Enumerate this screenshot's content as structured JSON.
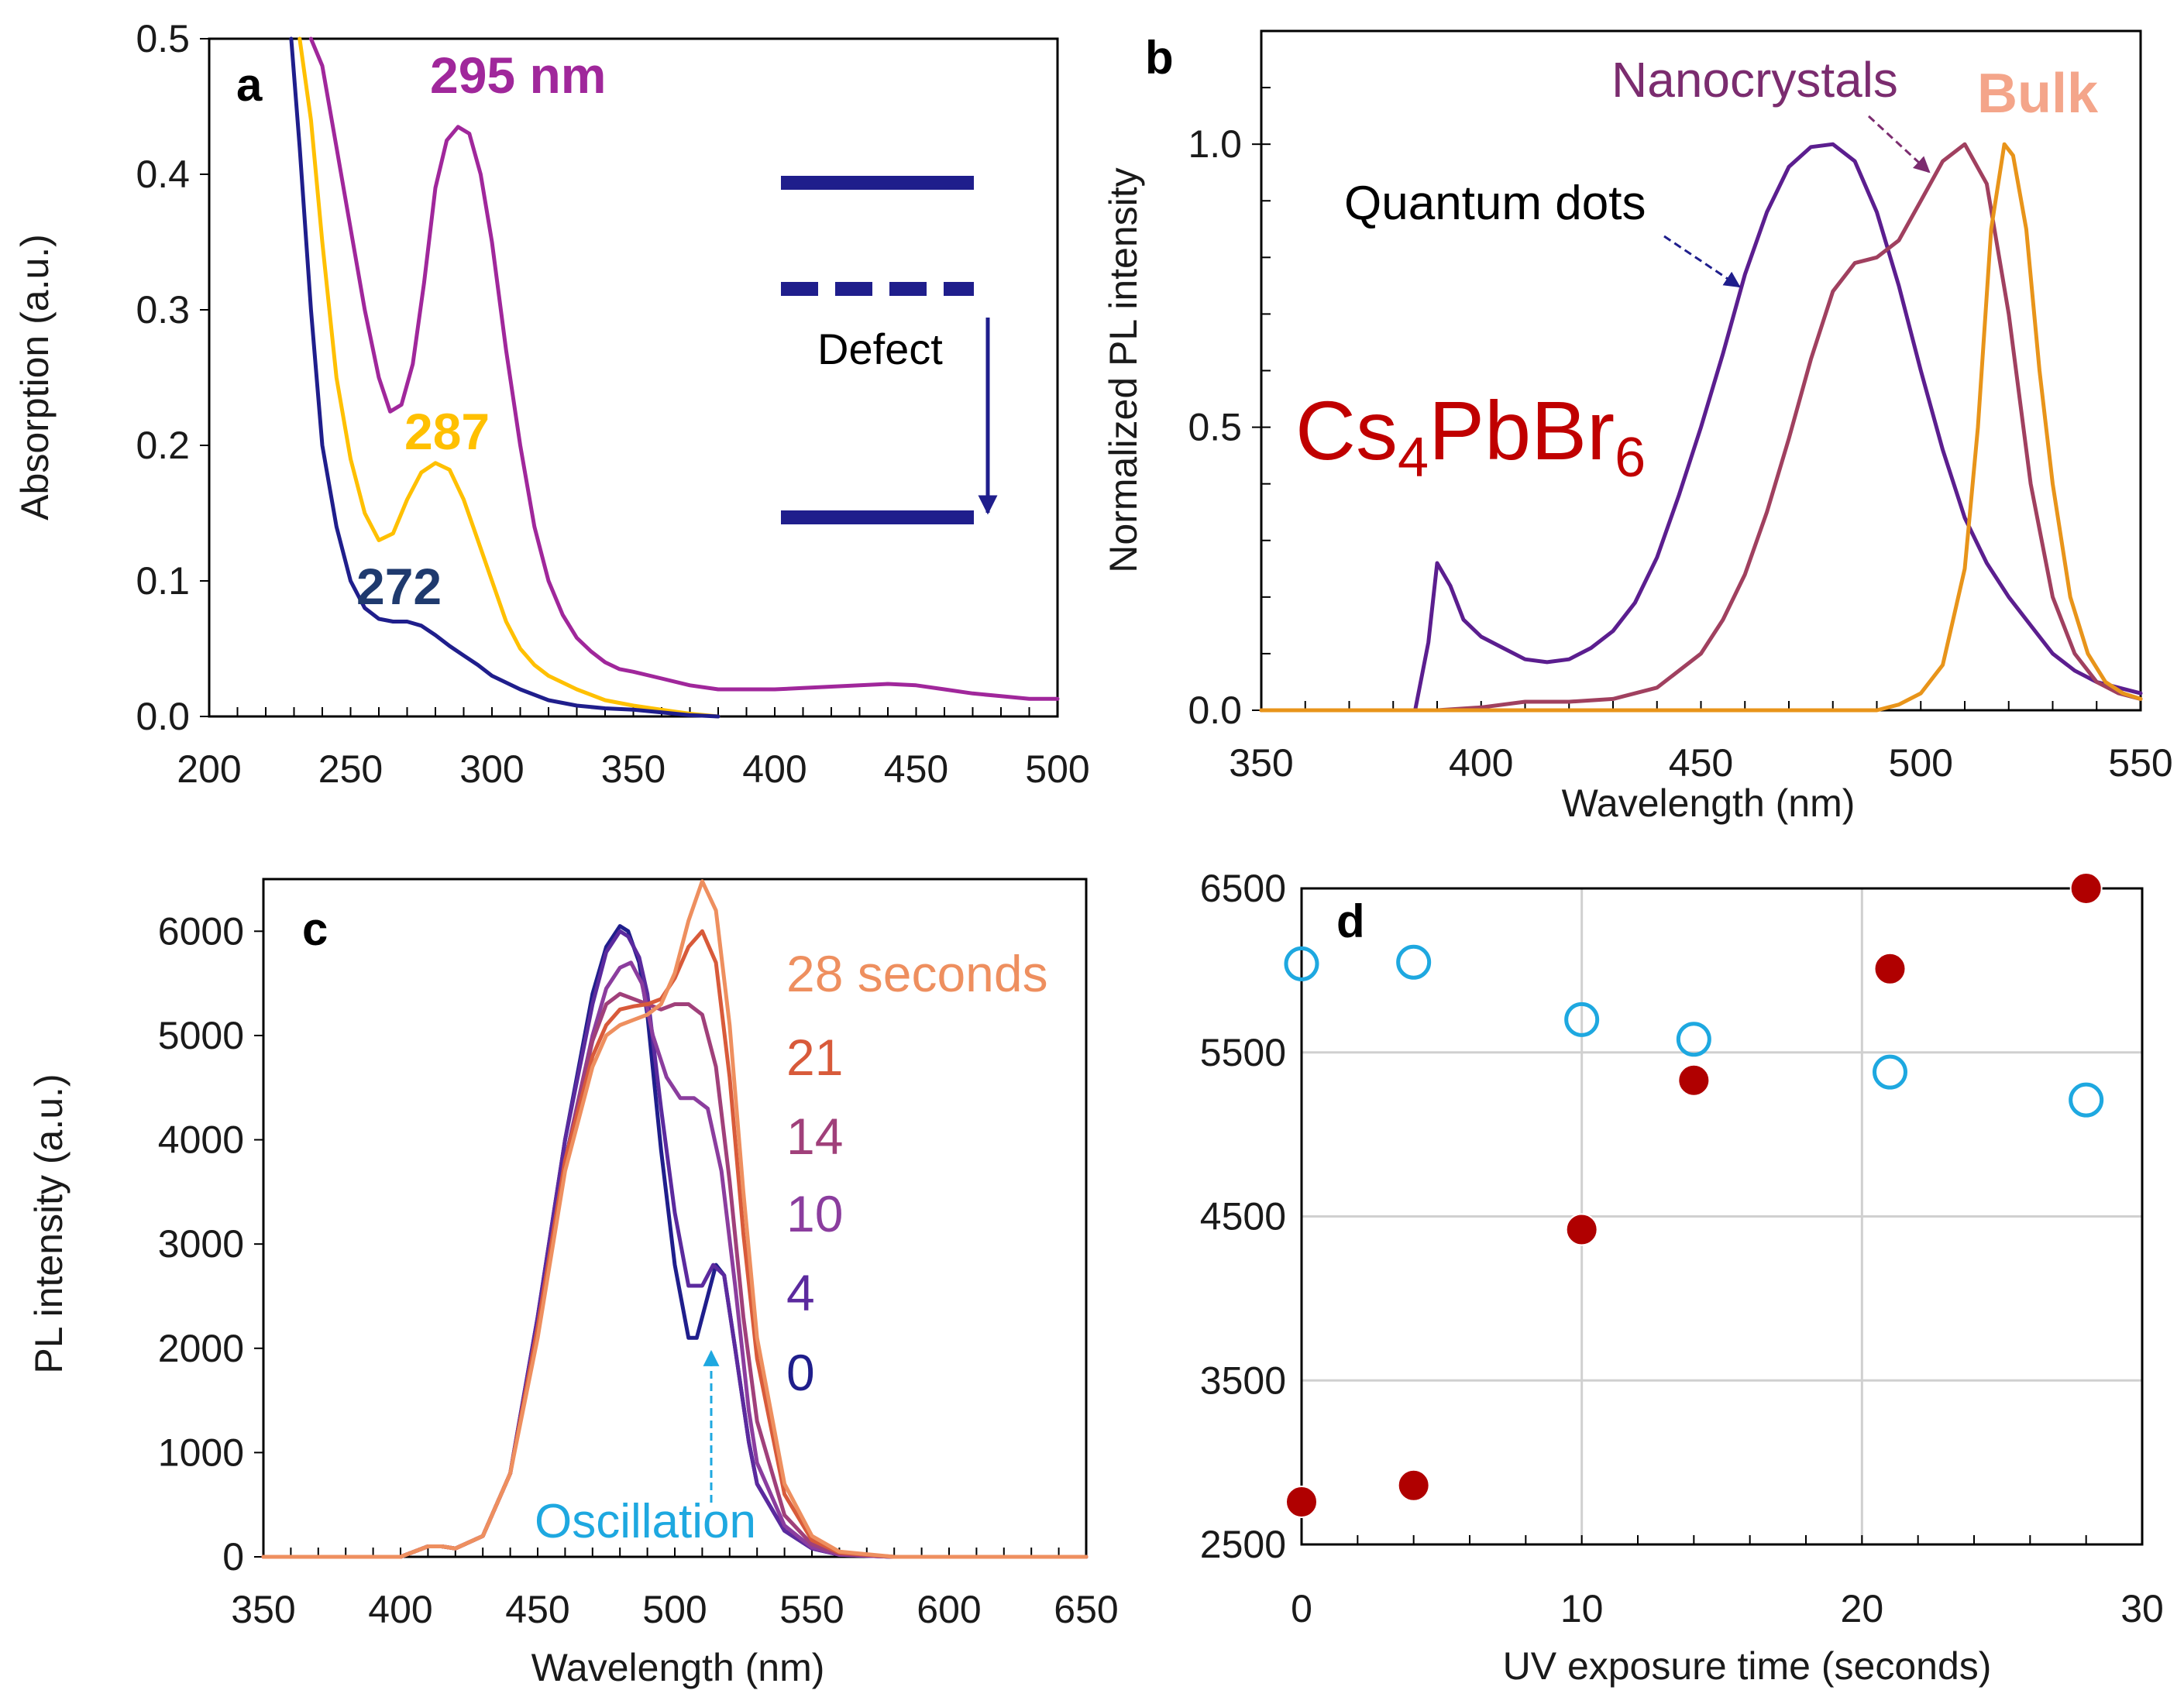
{
  "chart_data": [
    {
      "panel": "a",
      "type": "line",
      "title": "",
      "xlabel": "",
      "ylabel": "Absorption  (a.u.)",
      "xlim": [
        200,
        500
      ],
      "ylim": [
        0,
        0.5
      ],
      "xticks": [
        200,
        250,
        300,
        350,
        400,
        450,
        500
      ],
      "yticks": [
        0.0,
        0.1,
        0.2,
        0.3,
        0.4,
        0.5
      ],
      "series": [
        {
          "name": "295 nm",
          "color": "#A0279B",
          "x": [
            236,
            240,
            245,
            250,
            255,
            260,
            264,
            268,
            272,
            276,
            280,
            284,
            288,
            292,
            296,
            300,
            305,
            310,
            315,
            320,
            325,
            330,
            335,
            340,
            345,
            350,
            360,
            370,
            380,
            390,
            400,
            410,
            420,
            430,
            440,
            450,
            460,
            470,
            480,
            490,
            500
          ],
          "y": [
            0.5,
            0.48,
            0.42,
            0.36,
            0.3,
            0.25,
            0.225,
            0.23,
            0.26,
            0.32,
            0.39,
            0.425,
            0.435,
            0.43,
            0.4,
            0.35,
            0.27,
            0.2,
            0.14,
            0.1,
            0.075,
            0.058,
            0.048,
            0.04,
            0.035,
            0.033,
            0.028,
            0.023,
            0.02,
            0.02,
            0.02,
            0.021,
            0.022,
            0.023,
            0.024,
            0.023,
            0.02,
            0.017,
            0.015,
            0.013,
            0.013
          ]
        },
        {
          "name": "287",
          "color": "#FFC000",
          "x": [
            232,
            236,
            240,
            245,
            250,
            255,
            260,
            265,
            270,
            275,
            280,
            285,
            290,
            295,
            300,
            305,
            310,
            315,
            320,
            330,
            340,
            350,
            360,
            370,
            380
          ],
          "y": [
            0.5,
            0.44,
            0.35,
            0.25,
            0.19,
            0.15,
            0.13,
            0.135,
            0.16,
            0.18,
            0.187,
            0.182,
            0.16,
            0.13,
            0.1,
            0.07,
            0.05,
            0.038,
            0.03,
            0.02,
            0.012,
            0.008,
            0.005,
            0.002,
            0.0
          ]
        },
        {
          "name": "272",
          "color": "#1F1E8C",
          "x": [
            229,
            232,
            236,
            240,
            245,
            250,
            255,
            260,
            265,
            270,
            275,
            280,
            285,
            290,
            295,
            300,
            310,
            320,
            330,
            340,
            350,
            360,
            370,
            380
          ],
          "y": [
            0.5,
            0.42,
            0.3,
            0.2,
            0.14,
            0.1,
            0.08,
            0.072,
            0.07,
            0.07,
            0.067,
            0.06,
            0.052,
            0.045,
            0.038,
            0.03,
            0.02,
            0.012,
            0.008,
            0.006,
            0.005,
            0.003,
            0.001,
            0.0
          ]
        }
      ],
      "annotations": [
        "295 nm",
        "287",
        "272",
        "Defect"
      ]
    },
    {
      "panel": "b",
      "type": "line",
      "title": "Cs4PbBr6",
      "xlabel": "Wavelength (nm)",
      "ylabel": "Normalized PL intensity",
      "xlim": [
        350,
        550
      ],
      "ylim": [
        0,
        1.2
      ],
      "xticks": [
        350,
        400,
        450,
        500,
        550
      ],
      "yticks": [
        0.0,
        0.5,
        1.0
      ],
      "series": [
        {
          "name": "Quantum dots",
          "color": "#5B1E8F",
          "x": [
            350,
            385,
            388,
            390,
            393,
            396,
            400,
            405,
            410,
            415,
            420,
            425,
            430,
            435,
            440,
            445,
            450,
            455,
            460,
            465,
            470,
            475,
            480,
            485,
            490,
            495,
            500,
            505,
            510,
            515,
            520,
            525,
            530,
            535,
            540,
            545,
            550
          ],
          "y": [
            0,
            0,
            0.12,
            0.26,
            0.22,
            0.16,
            0.13,
            0.11,
            0.09,
            0.085,
            0.09,
            0.11,
            0.14,
            0.19,
            0.27,
            0.38,
            0.5,
            0.63,
            0.77,
            0.88,
            0.96,
            0.995,
            1.0,
            0.97,
            0.88,
            0.75,
            0.6,
            0.46,
            0.34,
            0.26,
            0.2,
            0.15,
            0.1,
            0.07,
            0.05,
            0.04,
            0.03
          ]
        },
        {
          "name": "Nanocrystals",
          "color": "#A0405F",
          "x": [
            350,
            390,
            400,
            410,
            420,
            430,
            440,
            450,
            455,
            460,
            465,
            470,
            475,
            480,
            485,
            490,
            495,
            500,
            505,
            510,
            515,
            520,
            525,
            530,
            535,
            540,
            545,
            550
          ],
          "y": [
            0,
            0,
            0.005,
            0.015,
            0.015,
            0.02,
            0.04,
            0.1,
            0.16,
            0.24,
            0.35,
            0.48,
            0.62,
            0.74,
            0.79,
            0.8,
            0.83,
            0.9,
            0.97,
            1.0,
            0.93,
            0.7,
            0.4,
            0.2,
            0.1,
            0.05,
            0.03,
            0.02
          ]
        },
        {
          "name": "Bulk",
          "color": "#E8941A",
          "x": [
            350,
            490,
            495,
            500,
            505,
            510,
            513,
            516,
            519,
            521,
            524,
            527,
            530,
            534,
            538,
            542,
            546,
            550
          ],
          "y": [
            0,
            0,
            0.01,
            0.03,
            0.08,
            0.25,
            0.5,
            0.85,
            1.0,
            0.98,
            0.85,
            0.6,
            0.4,
            0.2,
            0.1,
            0.05,
            0.03,
            0.02
          ]
        }
      ],
      "annotations": [
        "Quantum dots",
        "Nanocrystals",
        "Bulk"
      ]
    },
    {
      "panel": "c",
      "type": "line",
      "title": "",
      "xlabel": "Wavelength (nm)",
      "ylabel": "PL intensity  (a.u.)",
      "xlim": [
        350,
        650
      ],
      "ylim": [
        0,
        6500
      ],
      "xticks": [
        350,
        400,
        450,
        500,
        550,
        600,
        650
      ],
      "yticks": [
        0,
        1000,
        2000,
        3000,
        4000,
        5000,
        6000
      ],
      "series": [
        {
          "name": "0",
          "color": "#1F1E8C",
          "x": [
            350,
            400,
            410,
            415,
            420,
            430,
            440,
            450,
            460,
            470,
            475,
            480,
            483,
            487,
            490,
            495,
            500,
            505,
            508,
            512,
            515,
            518,
            522,
            527,
            530,
            540,
            550,
            560,
            580,
            600,
            650
          ],
          "y": [
            0,
            0,
            100,
            100,
            80,
            200,
            800,
            2300,
            4000,
            5400,
            5850,
            6050,
            6000,
            5700,
            5200,
            3900,
            2800,
            2100,
            2100,
            2500,
            2800,
            2700,
            2000,
            1100,
            700,
            250,
            80,
            20,
            0,
            0,
            0
          ]
        },
        {
          "name": "4",
          "color": "#5B2A9E",
          "x": [
            350,
            400,
            410,
            415,
            420,
            430,
            440,
            450,
            460,
            470,
            475,
            480,
            483,
            487,
            490,
            495,
            500,
            505,
            510,
            514,
            518,
            522,
            527,
            530,
            540,
            550,
            560,
            580,
            600,
            650
          ],
          "y": [
            0,
            0,
            100,
            100,
            80,
            200,
            800,
            2300,
            4000,
            5300,
            5800,
            6000,
            5950,
            5750,
            5400,
            4300,
            3300,
            2600,
            2600,
            2800,
            2700,
            2000,
            1100,
            700,
            250,
            80,
            20,
            0,
            0,
            0
          ]
        },
        {
          "name": "10",
          "color": "#8B3D9E",
          "x": [
            350,
            400,
            410,
            415,
            420,
            430,
            440,
            450,
            460,
            470,
            475,
            480,
            484,
            488,
            492,
            497,
            502,
            507,
            512,
            517,
            522,
            527,
            530,
            540,
            550,
            560,
            580,
            600,
            650
          ],
          "y": [
            0,
            0,
            100,
            100,
            80,
            200,
            800,
            2200,
            3800,
            5000,
            5450,
            5650,
            5700,
            5500,
            5000,
            4600,
            4400,
            4400,
            4300,
            3700,
            2600,
            1400,
            900,
            300,
            90,
            20,
            0,
            0,
            0
          ]
        },
        {
          "name": "14",
          "color": "#A0407A",
          "x": [
            350,
            400,
            410,
            415,
            420,
            430,
            440,
            450,
            460,
            470,
            475,
            480,
            485,
            490,
            495,
            500,
            505,
            510,
            515,
            520,
            525,
            530,
            540,
            550,
            560,
            580,
            600,
            650
          ],
          "y": [
            0,
            0,
            100,
            100,
            80,
            200,
            800,
            2200,
            3800,
            4950,
            5300,
            5400,
            5350,
            5300,
            5250,
            5300,
            5300,
            5200,
            4700,
            3600,
            2300,
            1300,
            400,
            120,
            30,
            0,
            0,
            0
          ]
        },
        {
          "name": "21",
          "color": "#D85A3A",
          "x": [
            350,
            400,
            410,
            415,
            420,
            430,
            440,
            450,
            460,
            470,
            475,
            480,
            485,
            490,
            495,
            500,
            505,
            510,
            515,
            520,
            525,
            530,
            540,
            550,
            560,
            580,
            600,
            650
          ],
          "y": [
            0,
            0,
            100,
            100,
            80,
            200,
            800,
            2200,
            3800,
            4800,
            5100,
            5250,
            5280,
            5300,
            5350,
            5550,
            5850,
            6000,
            5700,
            4600,
            3100,
            1900,
            600,
            160,
            40,
            0,
            0,
            0
          ]
        },
        {
          "name": "28 seconds",
          "color": "#EE8F5F",
          "x": [
            350,
            400,
            410,
            415,
            420,
            430,
            440,
            450,
            460,
            470,
            475,
            480,
            485,
            490,
            495,
            500,
            505,
            510,
            515,
            520,
            525,
            530,
            540,
            550,
            560,
            580,
            600,
            650
          ],
          "y": [
            0,
            0,
            100,
            100,
            80,
            200,
            800,
            2100,
            3700,
            4700,
            5000,
            5100,
            5150,
            5200,
            5300,
            5600,
            6100,
            6480,
            6200,
            5100,
            3500,
            2100,
            700,
            200,
            50,
            0,
            0,
            0
          ]
        }
      ],
      "annotations": [
        "Oscillation"
      ]
    },
    {
      "panel": "d",
      "type": "scatter",
      "title": "",
      "xlabel": "UV exposure time (seconds)",
      "ylabel": "",
      "xlim": [
        0,
        30
      ],
      "ylim": [
        2500,
        6500
      ],
      "xticks": [
        0,
        10,
        20,
        30
      ],
      "yticks": [
        2500,
        3500,
        4500,
        5500,
        6500
      ],
      "grid": true,
      "series": [
        {
          "name": "filled",
          "color": "#B00000",
          "x": [
            0,
            4,
            10,
            14,
            21,
            28
          ],
          "y": [
            2760,
            2860,
            4420,
            5330,
            6010,
            6500
          ]
        },
        {
          "name": "open",
          "color": "#1EA8E0",
          "x": [
            0,
            4,
            10,
            14,
            21,
            28
          ],
          "y": [
            6040,
            6050,
            5700,
            5580,
            5380,
            5210
          ]
        }
      ]
    }
  ],
  "labels": {
    "a": {
      "panel": "a",
      "peak1": "295 nm",
      "peak2": "287",
      "peak3": "272",
      "defect": "Defect"
    },
    "b": {
      "panel": "b",
      "qd": "Quantum dots",
      "nc": "Nanocrystals",
      "bulk": "Bulk",
      "formula_main": "Cs",
      "formula_sub1": "4",
      "formula_mid": "PbBr",
      "formula_sub2": "6"
    },
    "c": {
      "panel": "c",
      "oscillation": "Oscillation",
      "legend": [
        "28 seconds",
        "21",
        "14",
        "10",
        "4",
        "0"
      ]
    },
    "d": {
      "panel": "d"
    }
  },
  "colors": {
    "purple_a": "#A0279B",
    "yellow": "#FFC000",
    "navy": "#1F1E8C",
    "dark_navy": "#1F3A6E",
    "qd": "#5B1E8F",
    "nc": "#A0405F",
    "bulk": "#E8941A",
    "bulk_label": "#F4A58A",
    "formula": "#C00000",
    "filled_marker": "#B00000",
    "open_marker": "#1EA8E0",
    "grid": "#D0D0D0",
    "arrow_blue": "#1EA8E0"
  }
}
